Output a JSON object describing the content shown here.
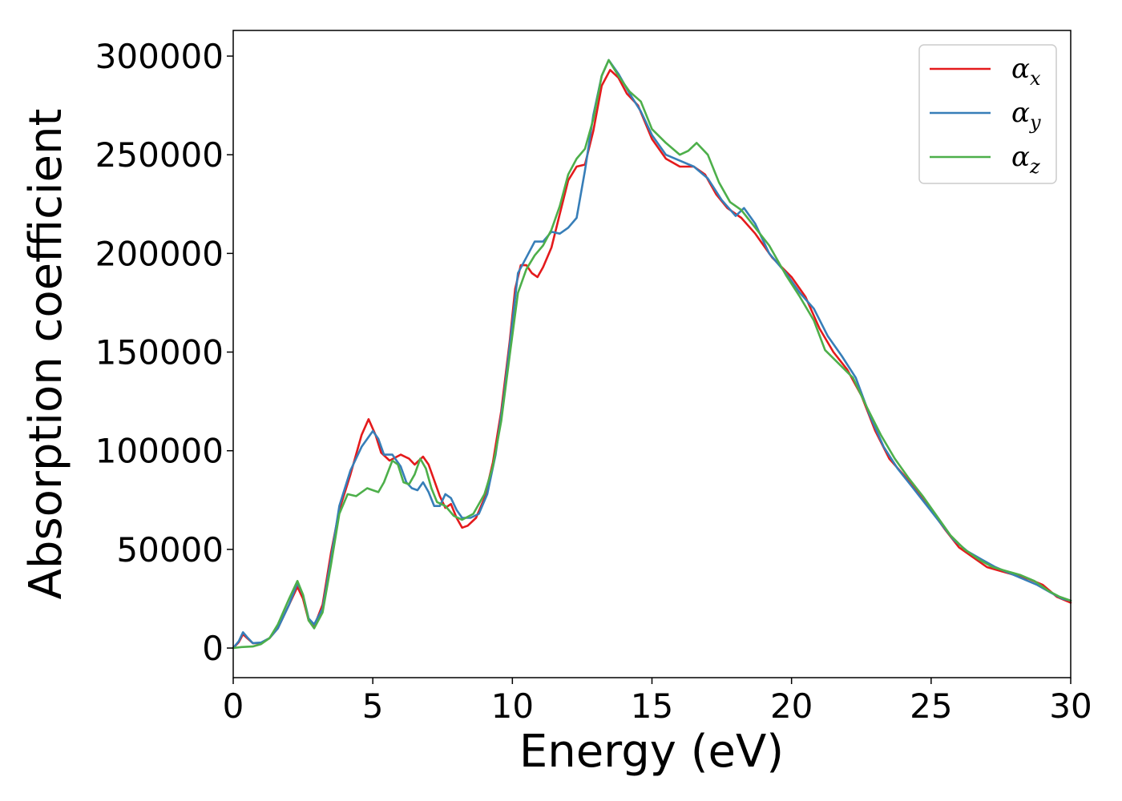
{
  "chart_data": {
    "type": "line",
    "title": "",
    "xlabel": "Energy (eV)",
    "ylabel": "Absorption coefficient",
    "xlim": [
      0,
      30
    ],
    "ylim": [
      -15000,
      313000
    ],
    "xticks": [
      0,
      5,
      10,
      15,
      20,
      25,
      30
    ],
    "yticks": [
      0,
      50000,
      100000,
      150000,
      200000,
      250000,
      300000
    ],
    "grid": false,
    "legend_placement": "top-right",
    "series": [
      {
        "name": "αx",
        "legend_base": "α",
        "legend_sub": "x",
        "color": "#e41a1c",
        "points": [
          [
            0,
            0
          ],
          [
            0.2,
            3000
          ],
          [
            0.35,
            7000
          ],
          [
            0.5,
            5000
          ],
          [
            0.7,
            2500
          ],
          [
            1.0,
            2500
          ],
          [
            1.3,
            5000
          ],
          [
            1.6,
            10000
          ],
          [
            2.0,
            22000
          ],
          [
            2.3,
            31000
          ],
          [
            2.5,
            25000
          ],
          [
            2.7,
            14000
          ],
          [
            2.9,
            11000
          ],
          [
            3.2,
            22000
          ],
          [
            3.5,
            48000
          ],
          [
            3.8,
            70000
          ],
          [
            4.2,
            88000
          ],
          [
            4.6,
            108000
          ],
          [
            4.85,
            116000
          ],
          [
            5.1,
            108000
          ],
          [
            5.3,
            99000
          ],
          [
            5.6,
            95000
          ],
          [
            6.0,
            98000
          ],
          [
            6.3,
            96000
          ],
          [
            6.5,
            93000
          ],
          [
            6.8,
            97000
          ],
          [
            7.0,
            93000
          ],
          [
            7.2,
            85000
          ],
          [
            7.4,
            77000
          ],
          [
            7.6,
            71000
          ],
          [
            7.8,
            73000
          ],
          [
            8.0,
            66000
          ],
          [
            8.2,
            61000
          ],
          [
            8.4,
            62000
          ],
          [
            8.7,
            66000
          ],
          [
            9.0,
            76000
          ],
          [
            9.3,
            94000
          ],
          [
            9.6,
            120000
          ],
          [
            9.9,
            155000
          ],
          [
            10.1,
            182000
          ],
          [
            10.3,
            194000
          ],
          [
            10.5,
            194000
          ],
          [
            10.7,
            190000
          ],
          [
            10.9,
            188000
          ],
          [
            11.1,
            193000
          ],
          [
            11.4,
            203000
          ],
          [
            11.7,
            220000
          ],
          [
            12.0,
            237000
          ],
          [
            12.3,
            244000
          ],
          [
            12.6,
            245000
          ],
          [
            12.9,
            262000
          ],
          [
            13.2,
            285000
          ],
          [
            13.5,
            293000
          ],
          [
            13.8,
            289000
          ],
          [
            14.1,
            281000
          ],
          [
            14.5,
            275000
          ],
          [
            15.0,
            258000
          ],
          [
            15.5,
            248000
          ],
          [
            16.0,
            244000
          ],
          [
            16.5,
            244000
          ],
          [
            16.9,
            240000
          ],
          [
            17.3,
            230000
          ],
          [
            17.7,
            223000
          ],
          [
            18.2,
            218000
          ],
          [
            18.7,
            210000
          ],
          [
            19.3,
            198000
          ],
          [
            20.0,
            188000
          ],
          [
            20.5,
            178000
          ],
          [
            21.0,
            162000
          ],
          [
            21.5,
            150000
          ],
          [
            22.0,
            141000
          ],
          [
            22.5,
            128000
          ],
          [
            23.0,
            110000
          ],
          [
            23.5,
            96000
          ],
          [
            24.0,
            88000
          ],
          [
            24.5,
            79000
          ],
          [
            25.0,
            70000
          ],
          [
            25.5,
            60000
          ],
          [
            26.0,
            51000
          ],
          [
            26.5,
            46000
          ],
          [
            27.0,
            41000
          ],
          [
            27.5,
            39000
          ],
          [
            28.0,
            37000
          ],
          [
            28.5,
            35000
          ],
          [
            29.0,
            32000
          ],
          [
            29.5,
            26000
          ],
          [
            30.0,
            23000
          ]
        ]
      },
      {
        "name": "αy",
        "legend_base": "α",
        "legend_sub": "y",
        "color": "#377eb8",
        "points": [
          [
            0,
            0
          ],
          [
            0.2,
            3500
          ],
          [
            0.35,
            8000
          ],
          [
            0.5,
            5500
          ],
          [
            0.7,
            2500
          ],
          [
            1.0,
            2800
          ],
          [
            1.3,
            5000
          ],
          [
            1.6,
            10000
          ],
          [
            2.0,
            22000
          ],
          [
            2.3,
            33000
          ],
          [
            2.5,
            27000
          ],
          [
            2.7,
            15000
          ],
          [
            2.9,
            12000
          ],
          [
            3.2,
            20000
          ],
          [
            3.5,
            45000
          ],
          [
            3.8,
            72000
          ],
          [
            4.2,
            90000
          ],
          [
            4.6,
            102000
          ],
          [
            5.0,
            110000
          ],
          [
            5.2,
            106000
          ],
          [
            5.4,
            98000
          ],
          [
            5.7,
            98000
          ],
          [
            6.0,
            92000
          ],
          [
            6.2,
            84000
          ],
          [
            6.4,
            81000
          ],
          [
            6.6,
            80000
          ],
          [
            6.8,
            84000
          ],
          [
            7.0,
            79000
          ],
          [
            7.2,
            72000
          ],
          [
            7.4,
            72000
          ],
          [
            7.6,
            78000
          ],
          [
            7.8,
            76000
          ],
          [
            8.0,
            70000
          ],
          [
            8.2,
            66000
          ],
          [
            8.5,
            66000
          ],
          [
            8.8,
            68000
          ],
          [
            9.1,
            78000
          ],
          [
            9.4,
            98000
          ],
          [
            9.7,
            128000
          ],
          [
            10.0,
            165000
          ],
          [
            10.2,
            190000
          ],
          [
            10.5,
            198000
          ],
          [
            10.8,
            206000
          ],
          [
            11.1,
            206000
          ],
          [
            11.4,
            211000
          ],
          [
            11.7,
            210000
          ],
          [
            12.0,
            213000
          ],
          [
            12.3,
            218000
          ],
          [
            12.6,
            242000
          ],
          [
            12.9,
            270000
          ],
          [
            13.2,
            290000
          ],
          [
            13.45,
            298000
          ],
          [
            13.8,
            291000
          ],
          [
            14.2,
            281000
          ],
          [
            14.6,
            272000
          ],
          [
            15.0,
            260000
          ],
          [
            15.5,
            250000
          ],
          [
            16.0,
            247000
          ],
          [
            16.5,
            244000
          ],
          [
            17.0,
            238000
          ],
          [
            17.5,
            227000
          ],
          [
            18.0,
            219000
          ],
          [
            18.3,
            223000
          ],
          [
            18.7,
            215000
          ],
          [
            19.2,
            200000
          ],
          [
            19.8,
            190000
          ],
          [
            20.3,
            180000
          ],
          [
            20.8,
            172000
          ],
          [
            21.3,
            158000
          ],
          [
            21.8,
            148000
          ],
          [
            22.3,
            137000
          ],
          [
            22.8,
            118000
          ],
          [
            23.3,
            102000
          ],
          [
            23.8,
            91000
          ],
          [
            24.3,
            82000
          ],
          [
            24.8,
            73000
          ],
          [
            25.3,
            64000
          ],
          [
            25.8,
            55000
          ],
          [
            26.3,
            49000
          ],
          [
            26.8,
            45000
          ],
          [
            27.3,
            41000
          ],
          [
            27.8,
            38000
          ],
          [
            28.3,
            35000
          ],
          [
            28.8,
            32000
          ],
          [
            29.3,
            28000
          ],
          [
            29.7,
            25000
          ],
          [
            30.0,
            24000
          ]
        ]
      },
      {
        "name": "αz",
        "legend_base": "α",
        "legend_sub": "z",
        "color": "#4daf4a",
        "points": [
          [
            0,
            0
          ],
          [
            0.3,
            500
          ],
          [
            0.7,
            800
          ],
          [
            1.0,
            2000
          ],
          [
            1.3,
            5000
          ],
          [
            1.6,
            12000
          ],
          [
            2.0,
            25000
          ],
          [
            2.3,
            34000
          ],
          [
            2.5,
            27000
          ],
          [
            2.7,
            14000
          ],
          [
            2.9,
            10000
          ],
          [
            3.2,
            18000
          ],
          [
            3.5,
            42000
          ],
          [
            3.8,
            68000
          ],
          [
            4.1,
            78000
          ],
          [
            4.4,
            77000
          ],
          [
            4.8,
            81000
          ],
          [
            5.0,
            80000
          ],
          [
            5.2,
            79000
          ],
          [
            5.4,
            84000
          ],
          [
            5.7,
            95000
          ],
          [
            5.9,
            93000
          ],
          [
            6.1,
            84000
          ],
          [
            6.3,
            83000
          ],
          [
            6.5,
            88000
          ],
          [
            6.7,
            96000
          ],
          [
            6.9,
            91000
          ],
          [
            7.1,
            81000
          ],
          [
            7.3,
            74000
          ],
          [
            7.6,
            72000
          ],
          [
            7.9,
            67000
          ],
          [
            8.2,
            65000
          ],
          [
            8.6,
            68000
          ],
          [
            9.0,
            78000
          ],
          [
            9.3,
            92000
          ],
          [
            9.6,
            115000
          ],
          [
            9.9,
            148000
          ],
          [
            10.2,
            180000
          ],
          [
            10.5,
            192000
          ],
          [
            10.8,
            199000
          ],
          [
            11.1,
            204000
          ],
          [
            11.4,
            212000
          ],
          [
            11.7,
            224000
          ],
          [
            12.0,
            240000
          ],
          [
            12.3,
            248000
          ],
          [
            12.6,
            253000
          ],
          [
            12.9,
            268000
          ],
          [
            13.2,
            290000
          ],
          [
            13.45,
            298000
          ],
          [
            13.8,
            290000
          ],
          [
            14.2,
            282000
          ],
          [
            14.6,
            277000
          ],
          [
            15.0,
            263000
          ],
          [
            15.5,
            256000
          ],
          [
            16.0,
            250000
          ],
          [
            16.3,
            252000
          ],
          [
            16.6,
            256000
          ],
          [
            17.0,
            250000
          ],
          [
            17.4,
            236000
          ],
          [
            17.8,
            226000
          ],
          [
            18.2,
            222000
          ],
          [
            18.7,
            213000
          ],
          [
            19.2,
            204000
          ],
          [
            19.8,
            189000
          ],
          [
            20.3,
            178000
          ],
          [
            20.8,
            166000
          ],
          [
            21.2,
            151000
          ],
          [
            21.7,
            144000
          ],
          [
            22.2,
            137000
          ],
          [
            22.7,
            122000
          ],
          [
            23.2,
            108000
          ],
          [
            23.7,
            96000
          ],
          [
            24.2,
            86000
          ],
          [
            24.7,
            77000
          ],
          [
            25.2,
            67000
          ],
          [
            25.7,
            57000
          ],
          [
            26.2,
            50000
          ],
          [
            26.7,
            45000
          ],
          [
            27.2,
            41000
          ],
          [
            27.7,
            39000
          ],
          [
            28.2,
            37000
          ],
          [
            28.7,
            34000
          ],
          [
            29.2,
            29000
          ],
          [
            29.6,
            26000
          ],
          [
            30.0,
            24000
          ]
        ]
      }
    ]
  }
}
